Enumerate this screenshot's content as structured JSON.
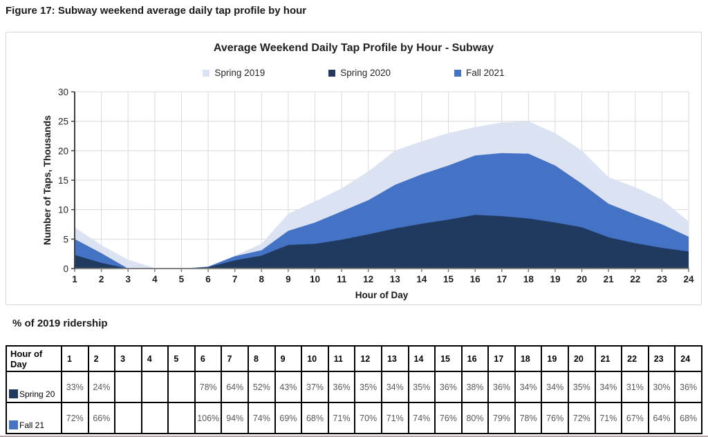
{
  "figure_title": "Figure 17: Subway weekend average daily tap profile by hour",
  "chart_data": {
    "type": "area",
    "title": "Average Weekend Daily Tap Profile by Hour - Subway",
    "xlabel": "Hour of Day",
    "ylabel": "Number of Taps, Thousands",
    "x": [
      1,
      2,
      3,
      4,
      5,
      6,
      7,
      8,
      9,
      10,
      11,
      12,
      13,
      14,
      15,
      16,
      17,
      18,
      19,
      20,
      21,
      22,
      23,
      24
    ],
    "ylim": [
      0,
      30
    ],
    "yticks": [
      0,
      5,
      10,
      15,
      20,
      25,
      30
    ],
    "grid": true,
    "legend_position": "top",
    "series": [
      {
        "name": "Spring 2019",
        "color": "#dbe2f1",
        "values": [
          7.0,
          4.0,
          1.5,
          0.1,
          0,
          0.3,
          2.2,
          4.2,
          9.3,
          11.4,
          13.6,
          16.5,
          20.0,
          21.6,
          23.0,
          24.0,
          24.8,
          25.0,
          23.0,
          20.0,
          15.5,
          13.8,
          11.7,
          8.0
        ]
      },
      {
        "name": "Spring 2020",
        "color": "#20395f",
        "values": [
          2.3,
          0.96,
          0,
          0,
          0,
          0.23,
          1.4,
          2.2,
          4.0,
          4.2,
          4.9,
          5.8,
          6.8,
          7.6,
          8.3,
          9.1,
          8.9,
          8.5,
          7.8,
          7.0,
          5.3,
          4.3,
          3.5,
          2.9
        ]
      },
      {
        "name": "Fall 2021",
        "color": "#4472c4",
        "values": [
          5.0,
          2.6,
          0,
          0,
          0,
          0.32,
          2.1,
          3.1,
          6.4,
          7.8,
          9.7,
          11.6,
          14.2,
          16.0,
          17.5,
          19.2,
          19.6,
          19.5,
          17.5,
          14.4,
          11.0,
          9.2,
          7.5,
          5.4
        ]
      }
    ],
    "draw_order": [
      0,
      2,
      1
    ]
  },
  "table": {
    "heading": "% of 2019 ridership",
    "header": [
      "Hour of Day",
      "1",
      "2",
      "3",
      "4",
      "5",
      "6",
      "7",
      "8",
      "9",
      "10",
      "11",
      "12",
      "13",
      "14",
      "15",
      "16",
      "17",
      "18",
      "19",
      "20",
      "21",
      "22",
      "23",
      "24"
    ],
    "rows": [
      {
        "label": "Spring 20",
        "color": "#20395f",
        "values": [
          "33%",
          "24%",
          "",
          "",
          "",
          "78%",
          "64%",
          "52%",
          "43%",
          "37%",
          "36%",
          "35%",
          "34%",
          "35%",
          "36%",
          "38%",
          "36%",
          "34%",
          "34%",
          "35%",
          "34%",
          "31%",
          "30%",
          "36%"
        ]
      },
      {
        "label": "Fall 21",
        "color": "#4472c4",
        "values": [
          "72%",
          "66%",
          "",
          "",
          "",
          "106%",
          "94%",
          "74%",
          "69%",
          "68%",
          "71%",
          "70%",
          "71%",
          "74%",
          "76%",
          "80%",
          "79%",
          "78%",
          "76%",
          "72%",
          "71%",
          "67%",
          "64%",
          "68%"
        ]
      }
    ]
  }
}
